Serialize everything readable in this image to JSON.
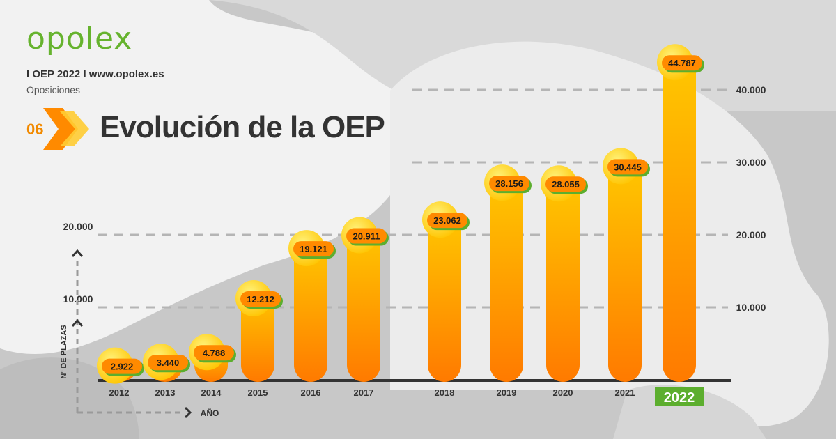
{
  "header": {
    "brand": "opolex",
    "tagline": "I OEP 2022 I www.opolex.es",
    "subtagline": "Oposiciones",
    "section_number": "06",
    "section_title": "Evolución de la OEP"
  },
  "colors": {
    "brand_green": "#66b32e",
    "bar_top": "#ffc800",
    "bar_bottom": "#ff7a00",
    "label_bubble": "#ffcf1a",
    "accent_orange": "#f28a00"
  },
  "chart_data": {
    "type": "bar",
    "categories": [
      "2012",
      "2013",
      "2014",
      "2015",
      "2016",
      "2017",
      "2018",
      "2019",
      "2020",
      "2021",
      "2022"
    ],
    "values": [
      2922,
      3440,
      4788,
      12212,
      19121,
      20911,
      23062,
      28156,
      28055,
      30445,
      44787
    ],
    "value_labels": [
      "2.922",
      "3.440",
      "4.788",
      "12.212",
      "19.121",
      "20.911",
      "23.062",
      "28.156",
      "28.055",
      "30.445",
      "44.787"
    ],
    "highlight_category": "2022",
    "xlabel": "AÑO",
    "ylabel": "Nº DE PLAZAS",
    "ylim": [
      0,
      45000
    ],
    "left_ticks": [
      {
        "value": 10000,
        "label": "10.000"
      },
      {
        "value": 20000,
        "label": "20.000"
      }
    ],
    "right_ticks": [
      {
        "value": 10000,
        "label": "10.000"
      },
      {
        "value": 20000,
        "label": "20.000"
      },
      {
        "value": 30000,
        "label": "30.000"
      },
      {
        "value": 40000,
        "label": "40.000"
      }
    ],
    "gridlines": "dashed"
  }
}
